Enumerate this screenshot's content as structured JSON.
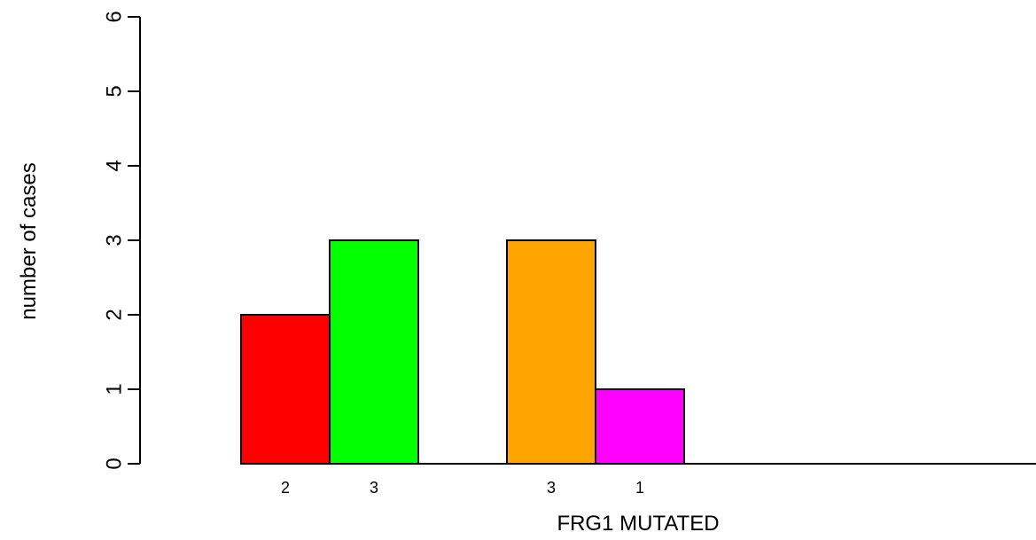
{
  "chart_data": {
    "type": "bar",
    "title": "",
    "xlabel": "FRG1 MUTATED",
    "ylabel": "number of cases",
    "ylim": [
      0,
      6
    ],
    "yticks": [
      "0",
      "1",
      "2",
      "3",
      "4",
      "5",
      "6"
    ],
    "grid": false,
    "legend": "none",
    "groups": [
      {
        "bars": [
          {
            "value": 2,
            "label": "2",
            "color": "#ff0000"
          },
          {
            "value": 3,
            "label": "3",
            "color": "#00ff00"
          }
        ]
      },
      {
        "bars": [
          {
            "value": 3,
            "label": "3",
            "color": "#ffa500"
          },
          {
            "value": 1,
            "label": "1",
            "color": "#ff00ff"
          }
        ]
      },
      {
        "bars": []
      }
    ]
  }
}
